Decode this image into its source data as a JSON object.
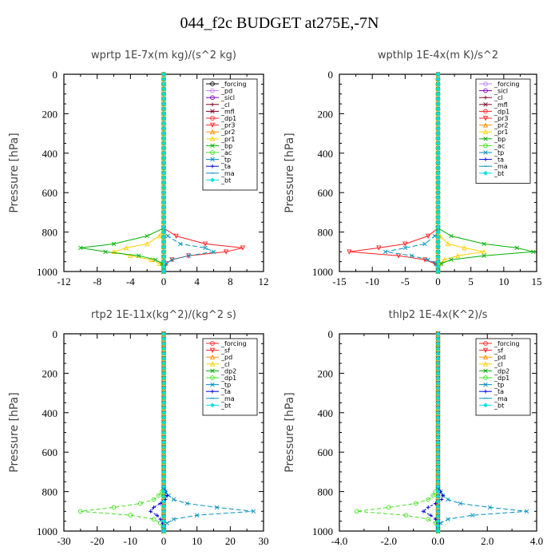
{
  "title": "044_f2c  BUDGET at275E,-7N",
  "colors": {
    "black": "#000000",
    "violet": "#c080ff",
    "purple": "#8000c0",
    "darkred": "#800020",
    "red": "#ff2020",
    "orange": "#ff8c00",
    "yellow": "#ffd000",
    "green": "#00b000",
    "lime": "#40e020",
    "blue": "#0000e0",
    "teal": "#0090c0",
    "cyan": "#00e0e0"
  },
  "chart_data": [
    {
      "type": "line",
      "title": "wprtp   1E-7x(m kg)/(s^2 kg)",
      "ylabel": "Pressure [hPa]",
      "xlim": [
        -12,
        12
      ],
      "ylim": [
        1000,
        0
      ],
      "y_inverted": true,
      "xticks": [
        "-12",
        "-8",
        "-4",
        "0",
        "4",
        "8",
        "12"
      ],
      "yticks": [
        "0",
        "200",
        "400",
        "600",
        "800",
        "1000"
      ],
      "legend_position": "top-right",
      "levels": [
        780,
        820,
        860,
        880,
        900,
        920,
        940,
        960,
        980,
        1000
      ],
      "series": [
        {
          "name": "_forcing",
          "color": "#000000",
          "marker": "o",
          "values": [
            0,
            0,
            0,
            0,
            0,
            0,
            0,
            0,
            0,
            0
          ]
        },
        {
          "name": "_pd",
          "color": "#c080ff",
          "marker": "o",
          "values": [
            0,
            0,
            0,
            0,
            0,
            0,
            0,
            0,
            0,
            0
          ]
        },
        {
          "name": "_sicl",
          "color": "#8000c0",
          "marker": "o",
          "values": [
            0,
            0,
            0,
            0,
            0,
            0,
            0,
            0,
            0,
            0
          ]
        },
        {
          "name": "_cl",
          "color": "#800020",
          "marker": "+",
          "values": [
            0,
            0,
            0,
            0,
            0,
            0,
            0,
            0,
            0,
            0
          ]
        },
        {
          "name": "_mfl",
          "color": "#800020",
          "marker": "x",
          "values": [
            0,
            0,
            0,
            0,
            0,
            0,
            0,
            0,
            0,
            0
          ]
        },
        {
          "name": "_dp1",
          "color": "#ff2020",
          "marker": "o",
          "values": [
            0,
            0,
            0,
            0,
            0,
            0,
            0,
            0,
            0,
            0
          ]
        },
        {
          "name": "_pr3",
          "color": "#ff2020",
          "marker": "v",
          "values": [
            0,
            1.5,
            5,
            9.5,
            7.5,
            3,
            1,
            0.3,
            0,
            0
          ]
        },
        {
          "name": "_pr2",
          "color": "#ff8c00",
          "marker": "^",
          "values": [
            0,
            0,
            0,
            0,
            0,
            0,
            0,
            0,
            0,
            0
          ]
        },
        {
          "name": "_pr1",
          "color": "#ffd000",
          "marker": "^",
          "values": [
            0,
            -0.5,
            -2,
            -4.5,
            -6,
            -4,
            -1.5,
            -0.5,
            0,
            0
          ]
        },
        {
          "name": "_bp",
          "color": "#00b000",
          "marker": "x",
          "values": [
            0,
            -2,
            -6,
            -10,
            -7,
            -3,
            -1,
            -0.2,
            0,
            0
          ]
        },
        {
          "name": "_ac",
          "color": "#40e020",
          "marker": "o",
          "values": [
            0,
            0,
            0,
            0,
            0,
            0,
            0,
            0,
            0,
            0
          ]
        },
        {
          "name": "_tp",
          "color": "#0090c0",
          "marker": "x",
          "values": [
            0,
            0.5,
            2,
            5,
            6,
            3,
            1,
            0.3,
            0,
            0
          ]
        },
        {
          "name": "_ta",
          "color": "#0000e0",
          "marker": "+",
          "values": [
            0,
            0,
            0,
            0,
            0,
            0,
            0,
            0,
            0,
            0
          ]
        },
        {
          "name": "_ma",
          "color": "#0090c0",
          "marker": "-",
          "values": [
            0,
            0,
            0,
            0,
            0,
            0,
            0,
            0,
            0,
            0
          ]
        },
        {
          "name": "_bt",
          "color": "#00e0e0",
          "marker": "d",
          "values": [
            0,
            0,
            0,
            0,
            0,
            0,
            0,
            0,
            0,
            0
          ]
        }
      ]
    },
    {
      "type": "line",
      "title": "wpthlp   1E-4x(m K)/s^2",
      "ylabel": "Pressure [hPa]",
      "xlim": [
        -15,
        15
      ],
      "ylim": [
        1000,
        0
      ],
      "y_inverted": true,
      "xticks": [
        "-15",
        "-10",
        "-5",
        "0",
        "5",
        "10",
        "15"
      ],
      "yticks": [
        "0",
        "200",
        "400",
        "600",
        "800",
        "1000"
      ],
      "legend_position": "top-right",
      "levels": [
        780,
        820,
        860,
        880,
        900,
        920,
        940,
        960,
        980,
        1000
      ],
      "series": [
        {
          "name": "_forcing",
          "color": "#c080ff",
          "marker": "o",
          "values": [
            0,
            0,
            0,
            0,
            0,
            0,
            0,
            0,
            0,
            0
          ]
        },
        {
          "name": "_sicl",
          "color": "#8000c0",
          "marker": "o",
          "values": [
            0,
            0,
            0,
            0,
            0,
            0,
            0,
            0,
            0,
            0
          ]
        },
        {
          "name": "_cl",
          "color": "#800020",
          "marker": "+",
          "values": [
            0,
            0,
            0,
            0,
            0,
            0,
            0,
            0,
            0,
            0
          ]
        },
        {
          "name": "_mfl",
          "color": "#800020",
          "marker": "x",
          "values": [
            0,
            0,
            0,
            0,
            0,
            0,
            0,
            0,
            0,
            0
          ]
        },
        {
          "name": "_dp1",
          "color": "#ff2020",
          "marker": "o",
          "values": [
            0,
            0,
            0,
            0,
            0,
            0,
            0,
            0,
            0,
            0
          ]
        },
        {
          "name": "_pr3",
          "color": "#ff2020",
          "marker": "v",
          "values": [
            0,
            -1.5,
            -5,
            -9,
            -13.5,
            -6,
            -2,
            -0.5,
            0,
            0
          ]
        },
        {
          "name": "_pr2",
          "color": "#ff8c00",
          "marker": "^",
          "values": [
            0,
            0,
            0,
            0,
            0,
            0,
            0,
            0,
            0,
            0
          ]
        },
        {
          "name": "_pr1",
          "color": "#ffd000",
          "marker": "^",
          "values": [
            0,
            0.3,
            1.5,
            4,
            7,
            3,
            1,
            0.3,
            0,
            0
          ]
        },
        {
          "name": "_bp",
          "color": "#00b000",
          "marker": "x",
          "values": [
            0,
            2,
            7,
            12,
            14.5,
            7,
            2,
            0.5,
            0,
            0
          ]
        },
        {
          "name": "_ac",
          "color": "#40e020",
          "marker": "o",
          "values": [
            0,
            0,
            0,
            0,
            0,
            0,
            0,
            0,
            0,
            0
          ]
        },
        {
          "name": "_tp",
          "color": "#0090c0",
          "marker": "x",
          "values": [
            0,
            -0.5,
            -2,
            -5,
            -8,
            -4,
            -1.5,
            -0.3,
            0,
            0
          ]
        },
        {
          "name": "_ta",
          "color": "#0000e0",
          "marker": "+",
          "values": [
            0,
            0,
            0,
            0,
            0,
            0,
            0,
            0,
            0,
            0
          ]
        },
        {
          "name": "_ma",
          "color": "#0090c0",
          "marker": "-",
          "values": [
            0,
            0,
            0,
            0,
            0,
            0,
            0,
            0,
            0,
            0
          ]
        },
        {
          "name": "_bt",
          "color": "#00e0e0",
          "marker": "d",
          "values": [
            0,
            0,
            0,
            0,
            0,
            0,
            0,
            0,
            0,
            0
          ]
        }
      ]
    },
    {
      "type": "line",
      "title": "rtp2   1E-11x(kg^2)/(kg^2 s)",
      "ylabel": "Pressure [hPa]",
      "xlim": [
        -30,
        30
      ],
      "ylim": [
        1000,
        0
      ],
      "y_inverted": true,
      "xticks": [
        "-30",
        "-20",
        "-10",
        "0",
        "10",
        "20",
        "30"
      ],
      "yticks": [
        "0",
        "200",
        "400",
        "600",
        "800",
        "1000"
      ],
      "legend_position": "top-right",
      "levels": [
        780,
        800,
        820,
        840,
        860,
        880,
        900,
        920,
        940,
        960,
        980,
        1000
      ],
      "series": [
        {
          "name": "_forcing",
          "color": "#ff2020",
          "marker": "o",
          "values": [
            0,
            0,
            0,
            0,
            0,
            0,
            0,
            0,
            0,
            0,
            0,
            0
          ]
        },
        {
          "name": "_sf",
          "color": "#ff2020",
          "marker": "v",
          "values": [
            0,
            0,
            0,
            0,
            0,
            0,
            0,
            0,
            0,
            0,
            0,
            0
          ]
        },
        {
          "name": "_pd",
          "color": "#ff8c00",
          "marker": "^",
          "values": [
            0,
            0,
            0,
            0,
            0,
            0,
            0,
            0,
            0,
            0,
            0,
            0
          ]
        },
        {
          "name": "_cl",
          "color": "#ffd000",
          "marker": "^",
          "values": [
            0,
            0,
            0,
            0,
            0,
            0,
            0,
            0,
            0,
            0,
            0,
            0
          ]
        },
        {
          "name": "_dp2",
          "color": "#00b000",
          "marker": "x",
          "values": [
            0,
            0,
            0,
            0,
            0,
            0,
            0,
            0,
            0,
            0,
            0,
            0
          ]
        },
        {
          "name": "_dp1",
          "color": "#40e020",
          "marker": "o",
          "values": [
            0,
            -0.5,
            -1.5,
            -3,
            -7,
            -15,
            -25,
            -10,
            -3,
            -1,
            -0.2,
            0
          ]
        },
        {
          "name": "_tp",
          "color": "#0090c0",
          "marker": "x",
          "values": [
            0,
            0.5,
            1.5,
            3,
            7,
            16,
            27,
            10,
            3,
            1,
            0.2,
            0
          ]
        },
        {
          "name": "_ta",
          "color": "#0000e0",
          "marker": "+",
          "values": [
            0,
            0.5,
            1,
            0.5,
            -1,
            -3,
            -4,
            -2,
            -1,
            -0.3,
            0,
            0
          ]
        },
        {
          "name": "_ma",
          "color": "#0090c0",
          "marker": "-",
          "values": [
            0,
            0,
            0,
            0,
            0,
            0,
            0,
            0,
            0,
            0,
            0,
            0
          ]
        },
        {
          "name": "_bt",
          "color": "#00e0e0",
          "marker": "d",
          "values": [
            0,
            0,
            0,
            0,
            0,
            0,
            0,
            0,
            0,
            0,
            0,
            0
          ]
        }
      ]
    },
    {
      "type": "line",
      "title": "thlp2   1E-4x(K^2)/s",
      "ylabel": "Pressure [hPa]",
      "xlim": [
        -4,
        4
      ],
      "ylim": [
        1000,
        0
      ],
      "y_inverted": true,
      "xticks": [
        "-4.0",
        "-2.0",
        "0.0",
        "2.0",
        "4.0"
      ],
      "yticks": [
        "0",
        "200",
        "400",
        "600",
        "800",
        "1000"
      ],
      "legend_position": "top-right",
      "levels": [
        780,
        800,
        820,
        840,
        860,
        880,
        900,
        920,
        940,
        960,
        980,
        1000
      ],
      "series": [
        {
          "name": "_forcing",
          "color": "#ff2020",
          "marker": "o",
          "values": [
            0,
            0,
            0,
            0,
            0,
            0,
            0,
            0,
            0,
            0,
            0,
            0
          ]
        },
        {
          "name": "_sf",
          "color": "#ff2020",
          "marker": "v",
          "values": [
            0,
            0,
            0,
            0,
            0,
            0,
            0,
            0,
            0,
            0,
            0,
            0
          ]
        },
        {
          "name": "_pd",
          "color": "#ff8c00",
          "marker": "^",
          "values": [
            0,
            0,
            0,
            0,
            0,
            0,
            0,
            0,
            0,
            0,
            0,
            0
          ]
        },
        {
          "name": "_cl",
          "color": "#ffd000",
          "marker": "^",
          "values": [
            0,
            0,
            0,
            0,
            0,
            0,
            0,
            0,
            0,
            0,
            0,
            0
          ]
        },
        {
          "name": "_dp2",
          "color": "#00b000",
          "marker": "x",
          "values": [
            0,
            0,
            0,
            0,
            0,
            0,
            0,
            0,
            0,
            0,
            0,
            0
          ]
        },
        {
          "name": "_dp1",
          "color": "#40e020",
          "marker": "o",
          "values": [
            0,
            -0.1,
            -0.2,
            -0.4,
            -0.9,
            -2,
            -3.3,
            -1.3,
            -0.4,
            -0.1,
            0,
            0
          ]
        },
        {
          "name": "_tp",
          "color": "#0090c0",
          "marker": "x",
          "values": [
            0,
            0.1,
            0.2,
            0.4,
            0.9,
            2.1,
            3.6,
            1.4,
            0.4,
            0.1,
            0,
            0
          ]
        },
        {
          "name": "_ta",
          "color": "#0000e0",
          "marker": "+",
          "values": [
            0,
            0.1,
            0.2,
            0.15,
            -0.1,
            -0.4,
            -0.6,
            -0.3,
            -0.1,
            0,
            0,
            0
          ]
        },
        {
          "name": "_ma",
          "color": "#0090c0",
          "marker": "-",
          "values": [
            0,
            0,
            0,
            0,
            0,
            0,
            0,
            0,
            0,
            0,
            0,
            0
          ]
        },
        {
          "name": "_bt",
          "color": "#00e0e0",
          "marker": "d",
          "values": [
            0,
            0,
            0,
            0,
            0,
            0,
            0,
            0,
            0,
            0,
            0,
            0
          ]
        }
      ]
    }
  ]
}
